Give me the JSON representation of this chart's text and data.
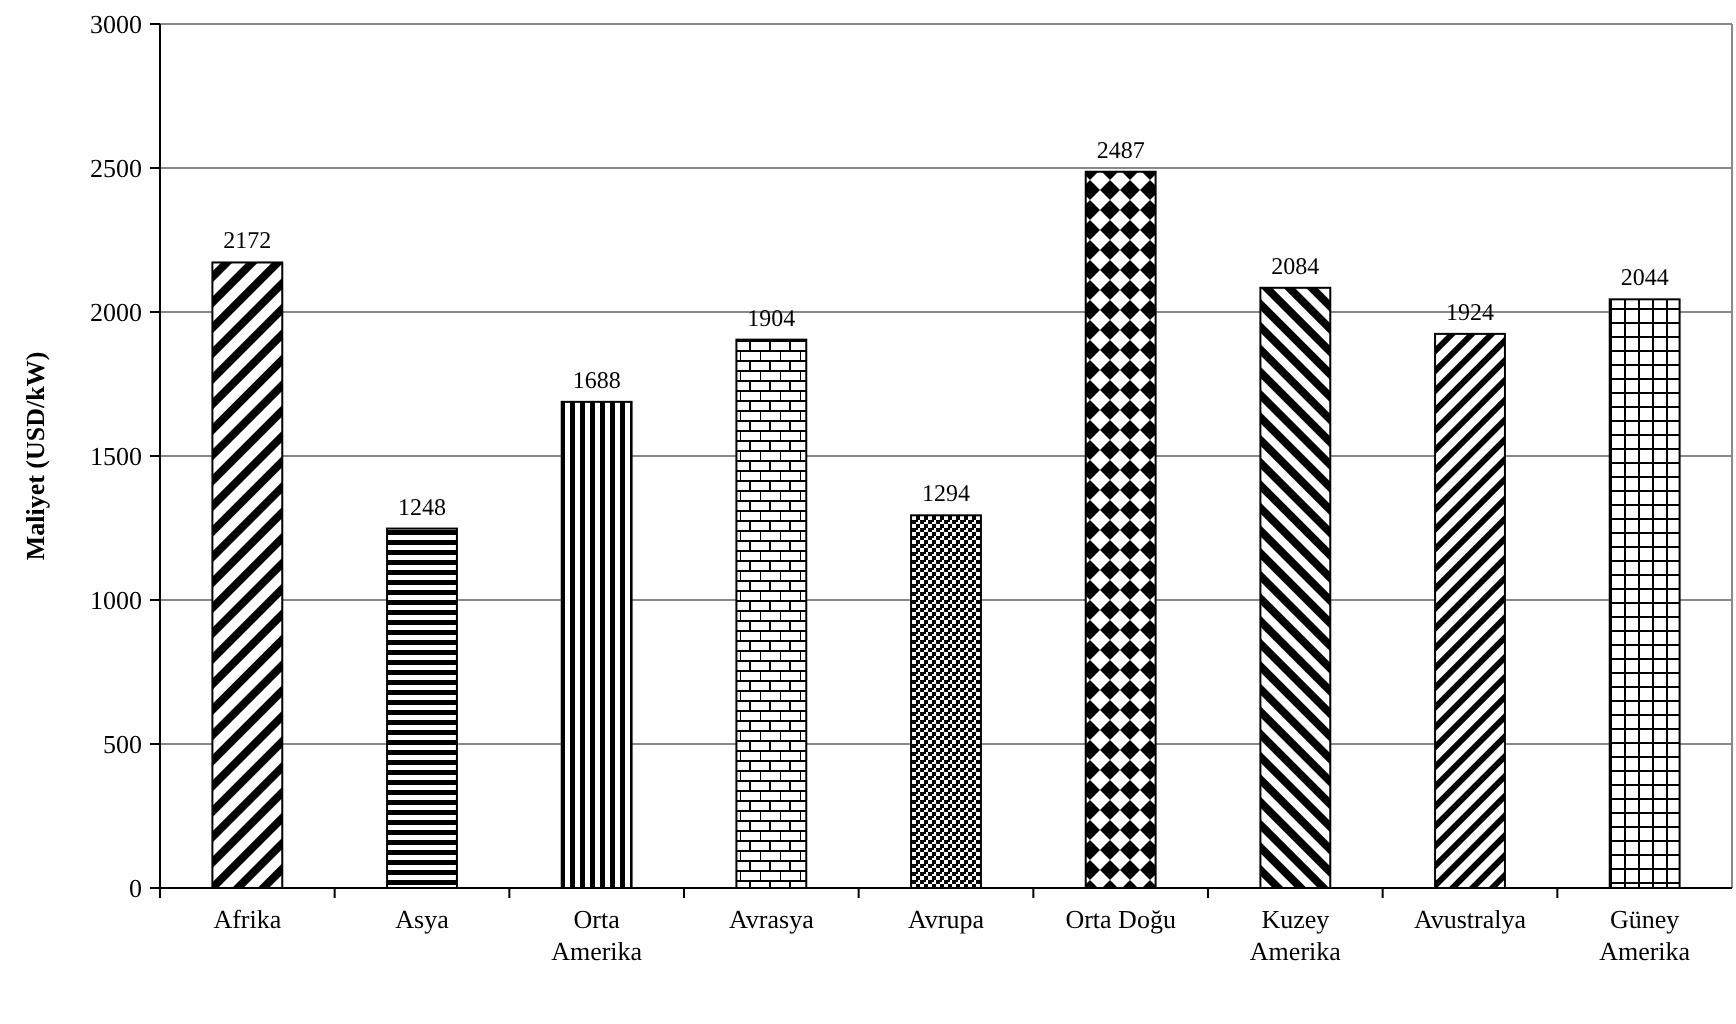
{
  "chart_data": {
    "type": "bar",
    "ylabel": "Maliyet (USD/kW)",
    "categories": [
      "Afrika",
      "Asya",
      "Orta\nAmerika",
      "Avrasya",
      "Avrupa",
      "Orta Doğu",
      "Kuzey\nAmerika",
      "Avustralya",
      "Güney\nAmerika"
    ],
    "values": [
      2172,
      1248,
      1688,
      1904,
      1294,
      2487,
      2084,
      1924,
      2044
    ],
    "color": "#000000",
    "data_labels": true,
    "ylim": [
      0,
      3000
    ],
    "yticks": [
      0,
      500,
      1000,
      1500,
      2000,
      2500,
      3000
    ],
    "grid": "y"
  }
}
